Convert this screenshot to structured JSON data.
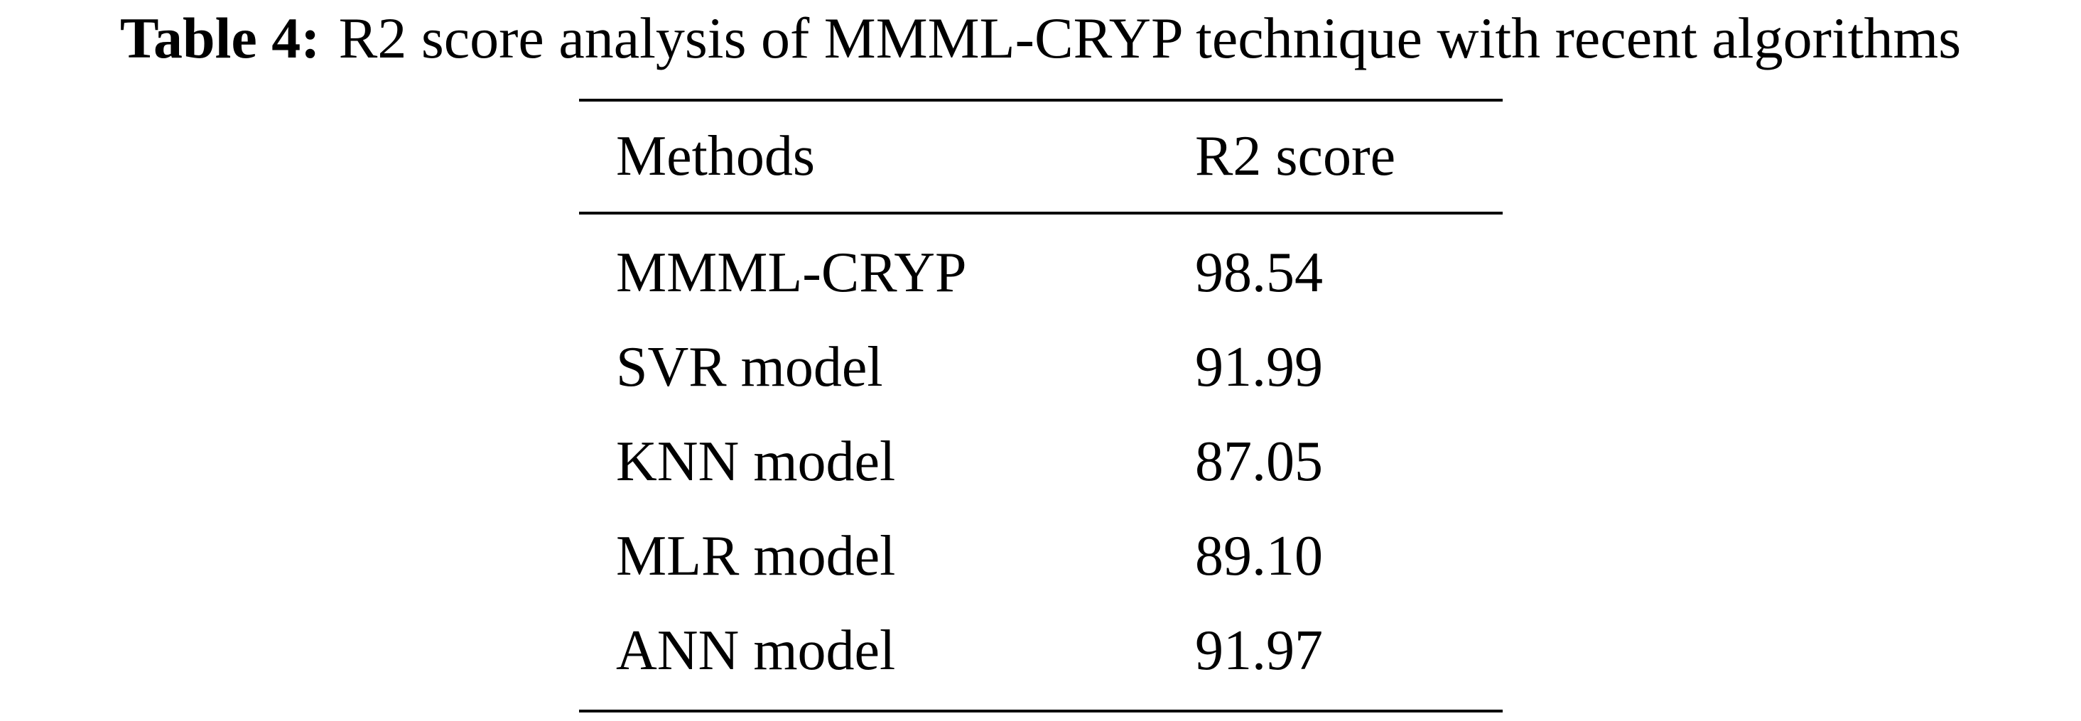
{
  "caption": {
    "label": "Table 4:",
    "text": "R2 score analysis of MMML-CRYP technique with recent algorithms"
  },
  "table": {
    "headers": [
      "Methods",
      "R2 score"
    ],
    "rows": [
      {
        "method": "MMML-CRYP",
        "score": "98.54"
      },
      {
        "method": "SVR model",
        "score": "91.99"
      },
      {
        "method": "KNN model",
        "score": "87.05"
      },
      {
        "method": "MLR model",
        "score": "89.10"
      },
      {
        "method": "ANN model",
        "score": "91.97"
      }
    ]
  }
}
